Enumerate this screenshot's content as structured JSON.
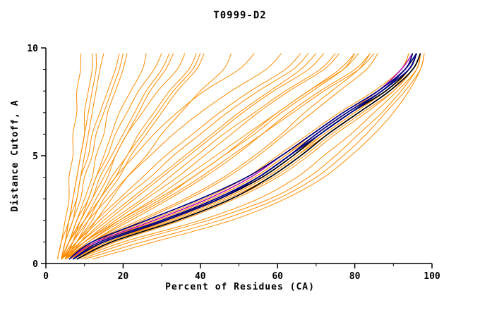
{
  "title": "T0999-D2",
  "chart_data": {
    "type": "line",
    "title": "T0999-D2",
    "xlabel": "Percent of Residues (CA)",
    "ylabel": "Distance Cutoff, A",
    "xlim": [
      0,
      100
    ],
    "ylim": [
      0,
      10
    ],
    "xticks": [
      0,
      20,
      40,
      60,
      80,
      100
    ],
    "xticks_minor": [
      10,
      30,
      50,
      70,
      90
    ],
    "yticks": [
      0,
      5,
      10
    ],
    "yticks_minor": [
      1,
      2,
      3,
      4,
      6,
      7,
      8,
      9
    ],
    "grid": false,
    "legend": "none",
    "colors": {
      "orange": "#ff8c00",
      "black": "#000000",
      "navy": "#000080",
      "magenta": "#b000b0"
    },
    "y_grid": [
      0.2,
      1,
      2,
      3,
      4,
      5,
      6,
      7,
      8,
      9,
      9.75
    ],
    "series": [
      {
        "c": "orange",
        "x": [
          5,
          13,
          28,
          42,
          53,
          61,
          69,
          77,
          86,
          93,
          95
        ]
      },
      {
        "c": "orange",
        "x": [
          6,
          15,
          31,
          45,
          56,
          64,
          71,
          79,
          88,
          94,
          96
        ]
      },
      {
        "c": "orange",
        "x": [
          5,
          14,
          30,
          44,
          55,
          63,
          70,
          78,
          87,
          93,
          95
        ]
      },
      {
        "c": "orange",
        "x": [
          7,
          16,
          33,
          47,
          58,
          66,
          73,
          81,
          89,
          95,
          97
        ]
      },
      {
        "c": "orange",
        "x": [
          6,
          14,
          29,
          43,
          54,
          62,
          70,
          78,
          86,
          92,
          94
        ]
      },
      {
        "c": "orange",
        "x": [
          5,
          12,
          27,
          41,
          52,
          60,
          68,
          76,
          85,
          92,
          94
        ]
      },
      {
        "c": "orange",
        "x": [
          6,
          15,
          32,
          46,
          57,
          65,
          72,
          80,
          88,
          94,
          96
        ]
      },
      {
        "c": "orange",
        "x": [
          7,
          17,
          34,
          48,
          59,
          67,
          74,
          82,
          90,
          95,
          97
        ]
      },
      {
        "c": "orange",
        "x": [
          5,
          13,
          29,
          43,
          54,
          62,
          69,
          77,
          86,
          93,
          95
        ]
      },
      {
        "c": "orange",
        "x": [
          6,
          16,
          32,
          46,
          57,
          65,
          73,
          81,
          89,
          94,
          96
        ]
      },
      {
        "c": "orange",
        "x": [
          8,
          18,
          35,
          49,
          60,
          68,
          75,
          83,
          90,
          95,
          97
        ]
      },
      {
        "c": "orange",
        "x": [
          6,
          14,
          30,
          45,
          56,
          64,
          72,
          80,
          88,
          94,
          96
        ]
      },
      {
        "c": "orange",
        "x": [
          5,
          11,
          20,
          30,
          38,
          46,
          53,
          60,
          68,
          76,
          80
        ]
      },
      {
        "c": "orange",
        "x": [
          5,
          10,
          18,
          26,
          34,
          41,
          48,
          55,
          63,
          72,
          76
        ]
      },
      {
        "c": "orange",
        "x": [
          4,
          9,
          16,
          23,
          30,
          37,
          44,
          51,
          59,
          68,
          72
        ]
      },
      {
        "c": "orange",
        "x": [
          5,
          12,
          22,
          32,
          41,
          49,
          56,
          63,
          71,
          80,
          84
        ]
      },
      {
        "c": "orange",
        "x": [
          4,
          8,
          14,
          20,
          27,
          33,
          40,
          47,
          55,
          64,
          68
        ]
      },
      {
        "c": "orange",
        "x": [
          5,
          10,
          17,
          25,
          32,
          39,
          46,
          54,
          62,
          71,
          75
        ]
      },
      {
        "c": "orange",
        "x": [
          6,
          12,
          21,
          31,
          40,
          48,
          56,
          64,
          72,
          81,
          85
        ]
      },
      {
        "c": "orange",
        "x": [
          4,
          9,
          15,
          22,
          29,
          36,
          43,
          50,
          58,
          66,
          70
        ]
      },
      {
        "c": "orange",
        "x": [
          5,
          11,
          19,
          28,
          36,
          44,
          52,
          60,
          68,
          77,
          81
        ]
      },
      {
        "c": "orange",
        "x": [
          4,
          8,
          13,
          19,
          25,
          31,
          38,
          45,
          53,
          62,
          66
        ]
      },
      {
        "c": "orange",
        "x": [
          4,
          5,
          7,
          8,
          9,
          10,
          11,
          12,
          13,
          14,
          15
        ]
      },
      {
        "c": "orange",
        "x": [
          4,
          6,
          8,
          10,
          12,
          13,
          15,
          16,
          18,
          20,
          21
        ]
      },
      {
        "c": "orange",
        "x": [
          4,
          5,
          6,
          7,
          8,
          9,
          10,
          10,
          11,
          12,
          12
        ]
      },
      {
        "c": "orange",
        "x": [
          4,
          6,
          9,
          11,
          13,
          15,
          17,
          19,
          22,
          25,
          26
        ]
      },
      {
        "c": "orange",
        "x": [
          5,
          7,
          10,
          13,
          16,
          18,
          21,
          24,
          27,
          31,
          33
        ]
      },
      {
        "c": "orange",
        "x": [
          4,
          6,
          8,
          11,
          13,
          16,
          18,
          21,
          24,
          28,
          30
        ]
      },
      {
        "c": "orange",
        "x": [
          5,
          8,
          12,
          15,
          19,
          22,
          26,
          30,
          34,
          39,
          41
        ]
      },
      {
        "c": "orange",
        "x": [
          4,
          7,
          10,
          14,
          17,
          21,
          24,
          28,
          32,
          37,
          39
        ]
      },
      {
        "c": "orange",
        "x": [
          4,
          5,
          7,
          9,
          10,
          12,
          13,
          15,
          17,
          19,
          20
        ]
      },
      {
        "c": "orange",
        "x": [
          5,
          8,
          11,
          14,
          18,
          21,
          25,
          29,
          33,
          38,
          40
        ]
      },
      {
        "c": "orange",
        "x": [
          4,
          6,
          9,
          12,
          15,
          18,
          21,
          25,
          29,
          34,
          36
        ]
      },
      {
        "c": "orange",
        "x": [
          5,
          7,
          9,
          12,
          14,
          17,
          20,
          23,
          26,
          30,
          32
        ]
      },
      {
        "c": "orange",
        "x": [
          4,
          5,
          6,
          8,
          9,
          11,
          12,
          14,
          16,
          18,
          19
        ]
      },
      {
        "c": "orange",
        "x": [
          5,
          9,
          13,
          17,
          21,
          26,
          30,
          35,
          40,
          46,
          48
        ]
      },
      {
        "c": "orange",
        "x": [
          8,
          20,
          40,
          55,
          65,
          72,
          79,
          85,
          91,
          96,
          97
        ]
      },
      {
        "c": "orange",
        "x": [
          10,
          25,
          45,
          60,
          70,
          77,
          83,
          88,
          93,
          97,
          98
        ]
      },
      {
        "c": "orange",
        "x": [
          9,
          22,
          42,
          58,
          68,
          75,
          81,
          87,
          92,
          96,
          97
        ]
      },
      {
        "c": "orange",
        "x": [
          12,
          28,
          48,
          62,
          72,
          79,
          85,
          90,
          94,
          97,
          98
        ]
      },
      {
        "c": "orange",
        "x": [
          5,
          12,
          24,
          36,
          46,
          54,
          61,
          67,
          74,
          81,
          84
        ]
      },
      {
        "c": "orange",
        "x": [
          4,
          10,
          19,
          29,
          38,
          46,
          54,
          61,
          69,
          77,
          80
        ]
      },
      {
        "c": "orange",
        "x": [
          6,
          13,
          25,
          37,
          47,
          55,
          62,
          69,
          76,
          83,
          86
        ]
      },
      {
        "c": "orange",
        "x": [
          3,
          4,
          5,
          6,
          6,
          7,
          7,
          8,
          8,
          9,
          9
        ]
      },
      {
        "c": "orange",
        "x": [
          3,
          4,
          6,
          7,
          8,
          9,
          10,
          11,
          12,
          13,
          13
        ]
      },
      {
        "c": "orange",
        "x": [
          4,
          7,
          11,
          16,
          21,
          27,
          33,
          40,
          48,
          57,
          61
        ]
      },
      {
        "c": "orange",
        "x": [
          4,
          6,
          10,
          14,
          18,
          23,
          28,
          34,
          41,
          50,
          54
        ]
      },
      {
        "c": "magenta",
        "x": [
          6,
          13,
          28,
          42,
          53,
          61,
          69,
          77,
          86,
          92,
          95
        ]
      },
      {
        "c": "black",
        "x": [
          7,
          15,
          31,
          45,
          56,
          64,
          71,
          79,
          88,
          94,
          96
        ]
      },
      {
        "c": "black",
        "x": [
          8,
          17,
          34,
          48,
          58,
          66,
          73,
          81,
          89,
          95,
          97
        ]
      },
      {
        "c": "navy",
        "x": [
          7,
          14,
          30,
          44,
          55,
          63,
          70,
          78,
          87,
          93,
          96
        ]
      },
      {
        "c": "navy",
        "x": [
          6,
          12,
          26,
          40,
          52,
          61,
          69,
          77,
          86,
          93,
          95
        ]
      },
      {
        "c": "navy",
        "x": [
          7,
          15,
          31,
          45,
          55,
          63,
          71,
          79,
          87,
          94,
          96
        ]
      }
    ]
  }
}
